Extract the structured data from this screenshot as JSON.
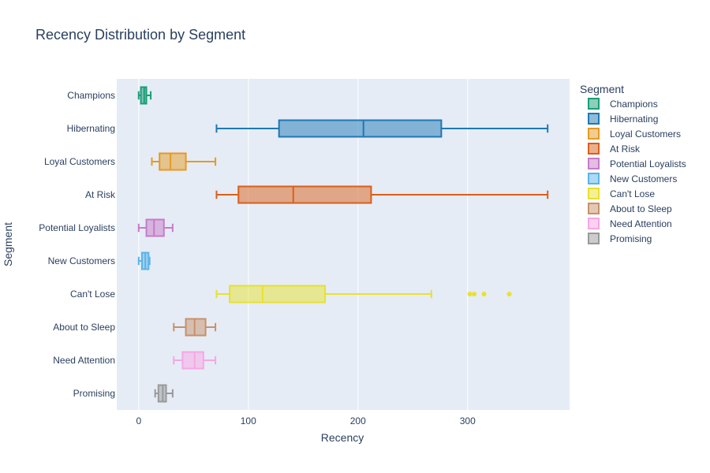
{
  "chart_data": {
    "type": "box",
    "orientation": "horizontal",
    "title": "Recency Distribution by Segment",
    "xlabel": "Recency",
    "ylabel": "Segment",
    "xlim": [
      -20,
      393
    ],
    "x_ticks": [
      0,
      100,
      200,
      300
    ],
    "grid": true,
    "legend": {
      "title": "Segment",
      "placement": "right"
    },
    "series": [
      {
        "name": "Champions",
        "color": "#1a9e77",
        "min": 0,
        "q1": 2,
        "median": 5,
        "q3": 7,
        "max": 11,
        "outliers": []
      },
      {
        "name": "Hibernating",
        "color": "#1f78b4",
        "min": 71,
        "q1": 128,
        "median": 205,
        "q3": 276,
        "max": 373,
        "outliers": []
      },
      {
        "name": "Loyal Customers",
        "color": "#e69a24",
        "min": 12,
        "q1": 19,
        "median": 29,
        "q3": 43,
        "max": 70,
        "outliers": []
      },
      {
        "name": "At Risk",
        "color": "#d95f1a",
        "min": 71,
        "q1": 91,
        "median": 141,
        "q3": 212,
        "max": 373,
        "outliers": []
      },
      {
        "name": "Potential Loyalists",
        "color": "#c77cc7",
        "min": 0,
        "q1": 7,
        "median": 14,
        "q3": 23,
        "max": 31,
        "outliers": []
      },
      {
        "name": "New Customers",
        "color": "#5ab4e8",
        "min": 0,
        "q1": 3,
        "median": 6,
        "q3": 9,
        "max": 10,
        "outliers": []
      },
      {
        "name": "Can't Lose",
        "color": "#e8e12e",
        "min": 71,
        "q1": 83,
        "median": 113,
        "q3": 170,
        "max": 267,
        "outliers": [
          302,
          306,
          315,
          338
        ]
      },
      {
        "name": "About to Sleep",
        "color": "#c8916a",
        "min": 32,
        "q1": 43,
        "median": 51,
        "q3": 61,
        "max": 70,
        "outliers": []
      },
      {
        "name": "Need Attention",
        "color": "#f7a6e4",
        "min": 32,
        "q1": 40,
        "median": 51,
        "q3": 59,
        "max": 70,
        "outliers": []
      },
      {
        "name": "Promising",
        "color": "#999999",
        "min": 15,
        "q1": 18,
        "median": 22,
        "q3": 25,
        "max": 31,
        "outliers": []
      }
    ]
  }
}
